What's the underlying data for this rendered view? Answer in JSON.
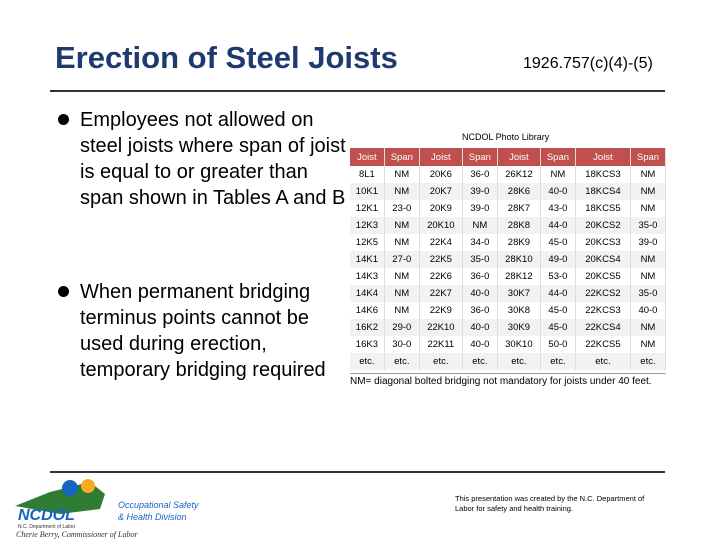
{
  "title": "Erection of Steel Joists",
  "citation": "1926.757(c)(4)-(5)",
  "bullets": [
    "Employees not allowed on steel joists where span of joist is equal to or greater than span shown in Tables A and B",
    "When permanent bridging terminus points cannot be used during erection, temporary bridging required"
  ],
  "photo_caption": "NCDOL Photo Library",
  "table": {
    "header": [
      "Joist",
      "Span",
      "Joist",
      "Span",
      "Joist",
      "Span",
      "Joist",
      "Span"
    ],
    "rows": [
      [
        "8L1",
        "NM",
        "20K6",
        "36-0",
        "26K12",
        "NM",
        "18KCS3",
        "NM"
      ],
      [
        "10K1",
        "NM",
        "20K7",
        "39-0",
        "28K6",
        "40-0",
        "18KCS4",
        "NM"
      ],
      [
        "12K1",
        "23-0",
        "20K9",
        "39-0",
        "28K7",
        "43-0",
        "18KCS5",
        "NM"
      ],
      [
        "12K3",
        "NM",
        "20K10",
        "NM",
        "28K8",
        "44-0",
        "20KCS2",
        "35-0"
      ],
      [
        "12K5",
        "NM",
        "22K4",
        "34-0",
        "28K9",
        "45-0",
        "20KCS3",
        "39-0"
      ],
      [
        "14K1",
        "27-0",
        "22K5",
        "35-0",
        "28K10",
        "49-0",
        "20KCS4",
        "NM"
      ],
      [
        "14K3",
        "NM",
        "22K6",
        "36-0",
        "28K12",
        "53-0",
        "20KCS5",
        "NM"
      ],
      [
        "14K4",
        "NM",
        "22K7",
        "40-0",
        "30K7",
        "44-0",
        "22KCS2",
        "35-0"
      ],
      [
        "14K6",
        "NM",
        "22K9",
        "36-0",
        "30K8",
        "45-0",
        "22KCS3",
        "40-0"
      ],
      [
        "16K2",
        "29-0",
        "22K10",
        "40-0",
        "30K9",
        "45-0",
        "22KCS4",
        "NM"
      ],
      [
        "16K3",
        "30-0",
        "22K11",
        "40-0",
        "30K10",
        "50-0",
        "22KCS5",
        "NM"
      ],
      [
        "etc.",
        "etc.",
        "etc.",
        "etc.",
        "etc.",
        "etc.",
        "etc.",
        "etc."
      ]
    ],
    "footnote": "NM= diagonal bolted bridging not mandatory for joists under 40 feet."
  },
  "logo": {
    "name": "NCDOL",
    "subtitle": "N.C. Department of Labor",
    "division_1": "Occupational Safety",
    "division_2": "& Health Division",
    "commissioner": "Cherie Berry, Commissioner of Labor"
  },
  "footer": "This presentation was created by the N.C. Department of Labor for safety and health training."
}
